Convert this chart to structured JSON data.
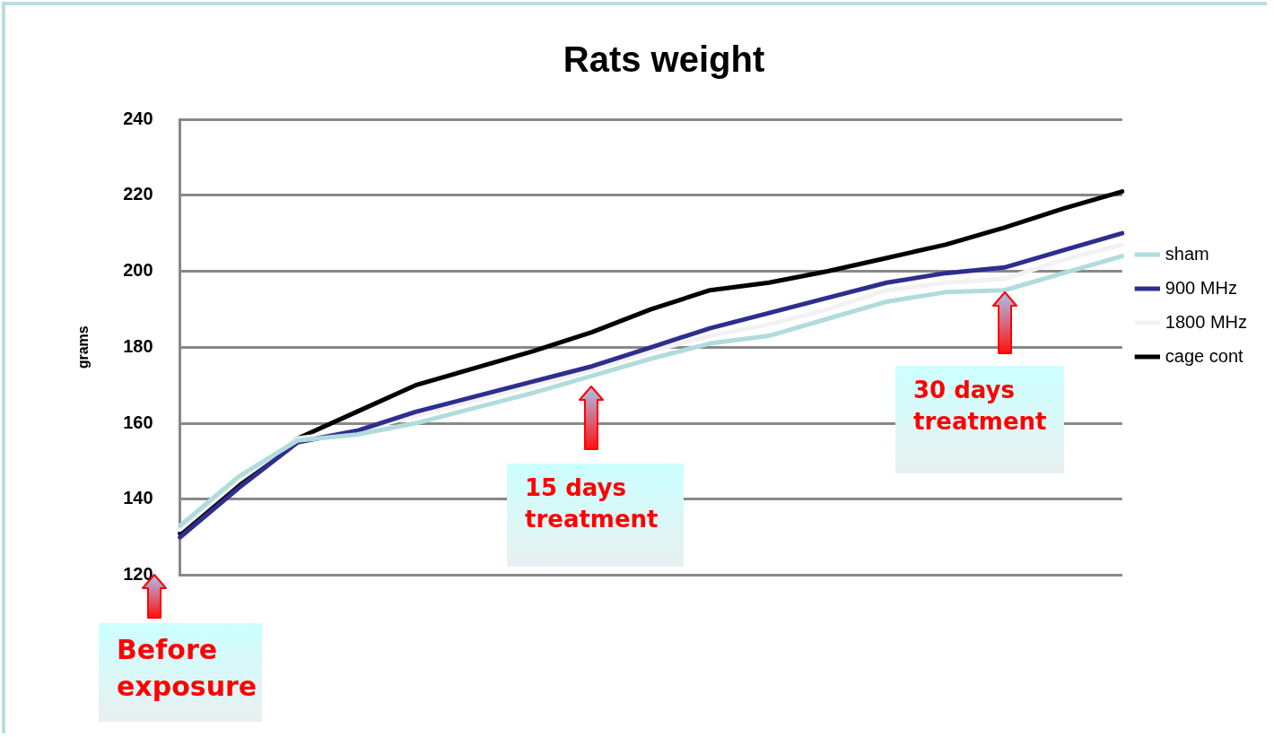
{
  "chart_data": {
    "type": "line",
    "title": "Rats weight",
    "ylabel": "grams",
    "categories": [
      null,
      null,
      null,
      null,
      null,
      null,
      null,
      null,
      null,
      null,
      null,
      null,
      null,
      null,
      null,
      null,
      null
    ],
    "series": [
      {
        "name": "sham",
        "color": "#b0dcdc",
        "values": [
          133,
          146,
          155.5,
          157,
          160,
          164,
          168,
          172.5,
          177,
          181,
          183,
          187.5,
          192,
          194.5,
          195,
          199.5,
          204
        ]
      },
      {
        "name": "900 MHz",
        "color": "#2e2e8f",
        "values": [
          130,
          143,
          155,
          158,
          163,
          167,
          171,
          175,
          180,
          185,
          189,
          193,
          197,
          199.5,
          201,
          205.5,
          210
        ]
      },
      {
        "name": "1800 MHz",
        "color": "#f2f2f2",
        "values": [
          132,
          145,
          156,
          158,
          162,
          166,
          170,
          174,
          179,
          183,
          186,
          190,
          195,
          197,
          198,
          203,
          207
        ]
      },
      {
        "name": "cage cont",
        "color": "#000000",
        "values": [
          131,
          144,
          156,
          163,
          170,
          174.5,
          179,
          184,
          190,
          195,
          197,
          200,
          203.5,
          207,
          211.5,
          216.5,
          221
        ]
      }
    ],
    "ylim": [
      120,
      240
    ],
    "yticks": [
      120,
      140,
      160,
      180,
      200,
      220,
      240
    ],
    "grid": "y",
    "legend": "right",
    "marker": "none",
    "line_style": "solid",
    "annotations": [
      "Before exposure",
      "15 days treatment",
      "30 days treatment"
    ]
  }
}
